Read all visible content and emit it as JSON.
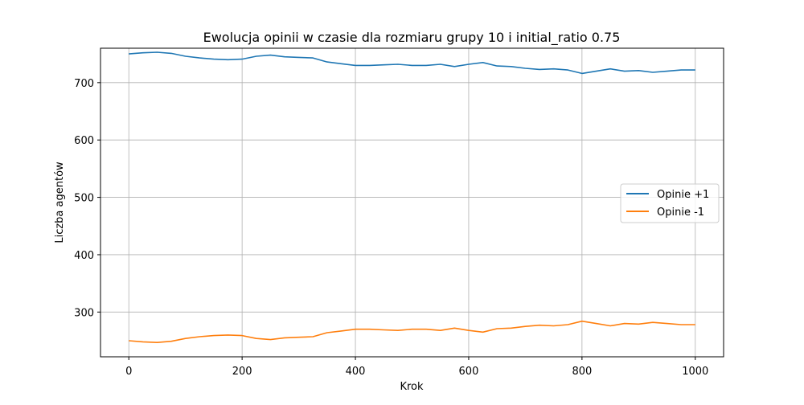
{
  "chart_data": {
    "type": "line",
    "title": "Ewolucja opinii w czasie dla rozmiaru grupy 10 i initial_ratio 0.75",
    "xlabel": "Krok",
    "ylabel": "Liczba agentów",
    "xlim": [
      -50,
      1050
    ],
    "ylim": [
      222,
      760
    ],
    "xticks": [
      0,
      200,
      400,
      600,
      800,
      1000
    ],
    "yticks": [
      300,
      400,
      500,
      600,
      700
    ],
    "grid": true,
    "legend_position": "center-right",
    "x": [
      0,
      25,
      50,
      75,
      100,
      125,
      150,
      175,
      200,
      225,
      250,
      275,
      300,
      325,
      350,
      375,
      400,
      425,
      450,
      475,
      500,
      525,
      550,
      575,
      600,
      625,
      650,
      675,
      700,
      725,
      750,
      775,
      800,
      825,
      850,
      875,
      900,
      925,
      950,
      975,
      1000
    ],
    "series": [
      {
        "name": "Opinie +1",
        "color": "#1f77b4",
        "values": [
          750,
          752,
          753,
          751,
          746,
          743,
          741,
          740,
          741,
          746,
          748,
          745,
          744,
          743,
          736,
          733,
          730,
          730,
          731,
          732,
          730,
          730,
          732,
          728,
          732,
          735,
          729,
          728,
          725,
          723,
          724,
          722,
          716,
          720,
          724,
          720,
          721,
          718,
          720,
          722,
          722
        ]
      },
      {
        "name": "Opinie -1",
        "color": "#ff7f0e",
        "values": [
          250,
          248,
          247,
          249,
          254,
          257,
          259,
          260,
          259,
          254,
          252,
          255,
          256,
          257,
          264,
          267,
          270,
          270,
          269,
          268,
          270,
          270,
          268,
          272,
          268,
          265,
          271,
          272,
          275,
          277,
          276,
          278,
          284,
          280,
          276,
          280,
          279,
          282,
          280,
          278,
          278
        ]
      }
    ]
  }
}
